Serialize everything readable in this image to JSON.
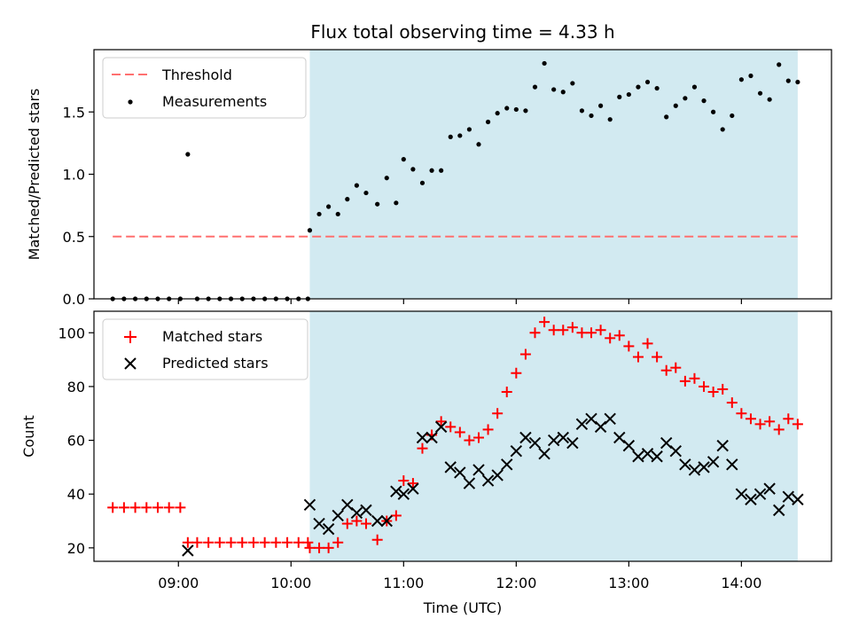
{
  "figure": {
    "title": "Flux total observing time = 4.33 h",
    "xlabel": "Time (UTC)",
    "x_ticks": [
      "09:00",
      "10:00",
      "11:00",
      "12:00",
      "13:00",
      "14:00"
    ],
    "shade_color": "#add8e6"
  },
  "chart_data": [
    {
      "type": "scatter",
      "name": "ratio-panel",
      "ylabel": "Matched/Predicted stars",
      "xlim": [
        "08:15",
        "14:48"
      ],
      "ylim": [
        0,
        2.0
      ],
      "y_ticks": [
        "0.0",
        "0.5",
        "1.0",
        "1.5"
      ],
      "observing_window": [
        "10:10",
        "14:30"
      ],
      "threshold": {
        "label": "Threshold",
        "value": 0.5,
        "x_range": [
          "08:25",
          "14:30"
        ],
        "color": "#ff7070"
      },
      "series": [
        {
          "name": "Measurements",
          "color": "#000000",
          "points": [
            [
              "08:25",
              0
            ],
            [
              "08:31",
              0
            ],
            [
              "08:37",
              0
            ],
            [
              "08:43",
              0
            ],
            [
              "08:49",
              0
            ],
            [
              "08:55",
              0
            ],
            [
              "09:01",
              0
            ],
            [
              "09:05",
              1.16
            ],
            [
              "09:10",
              0
            ],
            [
              "09:16",
              0
            ],
            [
              "09:22",
              0
            ],
            [
              "09:28",
              0
            ],
            [
              "09:34",
              0
            ],
            [
              "09:40",
              0
            ],
            [
              "09:46",
              0
            ],
            [
              "09:52",
              0
            ],
            [
              "09:58",
              0
            ],
            [
              "10:04",
              0
            ],
            [
              "10:09",
              0
            ],
            [
              "10:10",
              0.55
            ],
            [
              "10:15",
              0.68
            ],
            [
              "10:20",
              0.74
            ],
            [
              "10:25",
              0.68
            ],
            [
              "10:30",
              0.8
            ],
            [
              "10:35",
              0.91
            ],
            [
              "10:40",
              0.85
            ],
            [
              "10:46",
              0.76
            ],
            [
              "10:51",
              0.97
            ],
            [
              "10:56",
              0.77
            ],
            [
              "11:00",
              1.12
            ],
            [
              "11:05",
              1.04
            ],
            [
              "11:10",
              0.93
            ],
            [
              "11:15",
              1.03
            ],
            [
              "11:20",
              1.03
            ],
            [
              "11:25",
              1.3
            ],
            [
              "11:30",
              1.31
            ],
            [
              "11:35",
              1.36
            ],
            [
              "11:40",
              1.24
            ],
            [
              "11:45",
              1.42
            ],
            [
              "11:50",
              1.49
            ],
            [
              "11:55",
              1.53
            ],
            [
              "12:00",
              1.52
            ],
            [
              "12:05",
              1.51
            ],
            [
              "12:10",
              1.7
            ],
            [
              "12:15",
              1.89
            ],
            [
              "12:20",
              1.68
            ],
            [
              "12:25",
              1.66
            ],
            [
              "12:30",
              1.73
            ],
            [
              "12:35",
              1.51
            ],
            [
              "12:40",
              1.47
            ],
            [
              "12:45",
              1.55
            ],
            [
              "12:50",
              1.44
            ],
            [
              "12:55",
              1.62
            ],
            [
              "13:00",
              1.64
            ],
            [
              "13:05",
              1.7
            ],
            [
              "13:10",
              1.74
            ],
            [
              "13:15",
              1.69
            ],
            [
              "13:20",
              1.46
            ],
            [
              "13:25",
              1.55
            ],
            [
              "13:30",
              1.61
            ],
            [
              "13:35",
              1.7
            ],
            [
              "13:40",
              1.59
            ],
            [
              "13:45",
              1.5
            ],
            [
              "13:50",
              1.36
            ],
            [
              "13:55",
              1.47
            ],
            [
              "14:00",
              1.76
            ],
            [
              "14:05",
              1.79
            ],
            [
              "14:10",
              1.65
            ],
            [
              "14:15",
              1.6
            ],
            [
              "14:20",
              1.88
            ],
            [
              "14:25",
              1.75
            ],
            [
              "14:30",
              1.74
            ]
          ]
        }
      ],
      "legend": {
        "location": "upper left",
        "entries": [
          "Threshold",
          "Measurements"
        ]
      }
    },
    {
      "type": "scatter",
      "name": "count-panel",
      "ylabel": "Count",
      "xlim": [
        "08:15",
        "14:48"
      ],
      "ylim": [
        15,
        108
      ],
      "y_ticks": [
        "20",
        "40",
        "60",
        "80",
        "100"
      ],
      "observing_window": [
        "10:10",
        "14:30"
      ],
      "series": [
        {
          "name": "Matched stars",
          "marker": "+",
          "color": "#ff0000",
          "points": [
            [
              "08:25",
              35
            ],
            [
              "08:31",
              35
            ],
            [
              "08:37",
              35
            ],
            [
              "08:43",
              35
            ],
            [
              "08:49",
              35
            ],
            [
              "08:55",
              35
            ],
            [
              "09:01",
              35
            ],
            [
              "09:05",
              22
            ],
            [
              "09:10",
              22
            ],
            [
              "09:16",
              22
            ],
            [
              "09:22",
              22
            ],
            [
              "09:28",
              22
            ],
            [
              "09:34",
              22
            ],
            [
              "09:40",
              22
            ],
            [
              "09:46",
              22
            ],
            [
              "09:52",
              22
            ],
            [
              "09:58",
              22
            ],
            [
              "10:04",
              22
            ],
            [
              "10:09",
              22
            ],
            [
              "10:10",
              20
            ],
            [
              "10:15",
              20
            ],
            [
              "10:20",
              20
            ],
            [
              "10:25",
              22
            ],
            [
              "10:30",
              29
            ],
            [
              "10:35",
              30
            ],
            [
              "10:40",
              29
            ],
            [
              "10:46",
              23
            ],
            [
              "10:51",
              30
            ],
            [
              "10:56",
              32
            ],
            [
              "11:00",
              45
            ],
            [
              "11:05",
              44
            ],
            [
              "11:10",
              57
            ],
            [
              "11:15",
              62
            ],
            [
              "11:20",
              67
            ],
            [
              "11:25",
              65
            ],
            [
              "11:30",
              63
            ],
            [
              "11:35",
              60
            ],
            [
              "11:40",
              61
            ],
            [
              "11:45",
              64
            ],
            [
              "11:50",
              70
            ],
            [
              "11:55",
              78
            ],
            [
              "12:00",
              85
            ],
            [
              "12:05",
              92
            ],
            [
              "12:10",
              100
            ],
            [
              "12:15",
              104
            ],
            [
              "12:20",
              101
            ],
            [
              "12:25",
              101
            ],
            [
              "12:30",
              102
            ],
            [
              "12:35",
              100
            ],
            [
              "12:40",
              100
            ],
            [
              "12:45",
              101
            ],
            [
              "12:50",
              98
            ],
            [
              "12:55",
              99
            ],
            [
              "13:00",
              95
            ],
            [
              "13:05",
              91
            ],
            [
              "13:10",
              96
            ],
            [
              "13:15",
              91
            ],
            [
              "13:20",
              86
            ],
            [
              "13:25",
              87
            ],
            [
              "13:30",
              82
            ],
            [
              "13:35",
              83
            ],
            [
              "13:40",
              80
            ],
            [
              "13:45",
              78
            ],
            [
              "13:50",
              79
            ],
            [
              "13:55",
              74
            ],
            [
              "14:00",
              70
            ],
            [
              "14:05",
              68
            ],
            [
              "14:10",
              66
            ],
            [
              "14:15",
              67
            ],
            [
              "14:20",
              64
            ],
            [
              "14:25",
              68
            ],
            [
              "14:30",
              66
            ]
          ]
        },
        {
          "name": "Predicted stars",
          "marker": "x",
          "color": "#000000",
          "points": [
            [
              "09:05",
              19
            ],
            [
              "10:10",
              36
            ],
            [
              "10:15",
              29
            ],
            [
              "10:20",
              27
            ],
            [
              "10:25",
              32
            ],
            [
              "10:30",
              36
            ],
            [
              "10:35",
              33
            ],
            [
              "10:40",
              34
            ],
            [
              "10:46",
              30
            ],
            [
              "10:51",
              30
            ],
            [
              "10:56",
              41
            ],
            [
              "11:00",
              40
            ],
            [
              "11:05",
              42
            ],
            [
              "11:10",
              61
            ],
            [
              "11:15",
              61
            ],
            [
              "11:20",
              65
            ],
            [
              "11:25",
              50
            ],
            [
              "11:30",
              48
            ],
            [
              "11:35",
              44
            ],
            [
              "11:40",
              49
            ],
            [
              "11:45",
              45
            ],
            [
              "11:50",
              47
            ],
            [
              "11:55",
              51
            ],
            [
              "12:00",
              56
            ],
            [
              "12:05",
              61
            ],
            [
              "12:10",
              59
            ],
            [
              "12:15",
              55
            ],
            [
              "12:20",
              60
            ],
            [
              "12:25",
              61
            ],
            [
              "12:30",
              59
            ],
            [
              "12:35",
              66
            ],
            [
              "12:40",
              68
            ],
            [
              "12:45",
              65
            ],
            [
              "12:50",
              68
            ],
            [
              "12:55",
              61
            ],
            [
              "13:00",
              58
            ],
            [
              "13:05",
              54
            ],
            [
              "13:10",
              55
            ],
            [
              "13:15",
              54
            ],
            [
              "13:20",
              59
            ],
            [
              "13:25",
              56
            ],
            [
              "13:30",
              51
            ],
            [
              "13:35",
              49
            ],
            [
              "13:40",
              50
            ],
            [
              "13:45",
              52
            ],
            [
              "13:50",
              58
            ],
            [
              "13:55",
              51
            ],
            [
              "14:00",
              40
            ],
            [
              "14:05",
              38
            ],
            [
              "14:10",
              40
            ],
            [
              "14:15",
              42
            ],
            [
              "14:20",
              34
            ],
            [
              "14:25",
              39
            ],
            [
              "14:30",
              38
            ]
          ]
        }
      ],
      "legend": {
        "location": "upper left",
        "entries": [
          "Matched stars",
          "Predicted stars"
        ]
      }
    }
  ]
}
